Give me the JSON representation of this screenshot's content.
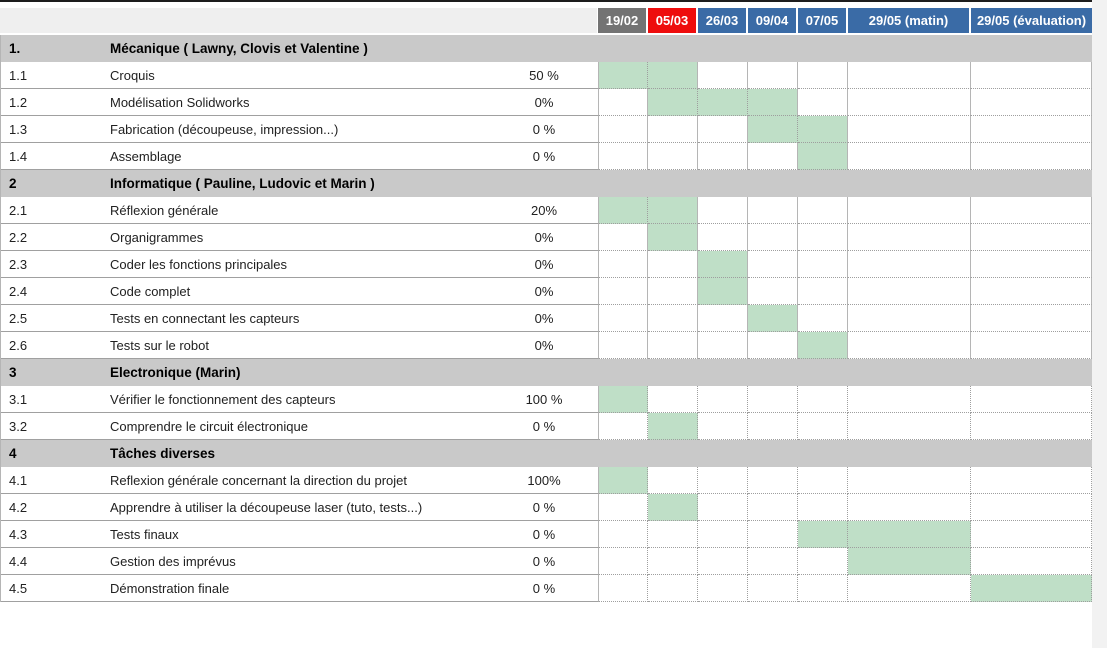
{
  "colors": {
    "bar_green": "#bfdfc7",
    "section_gray": "#c9c9c9",
    "header_blue": "#3a6ba6",
    "header_red": "#ee0d0d",
    "header_gray": "#737373"
  },
  "header": {
    "columns": [
      {
        "label": "19/02",
        "bg": "#737373"
      },
      {
        "label": "05/03",
        "bg": "#ee0d0d"
      },
      {
        "label": "26/03",
        "bg": "#3a6ba6"
      },
      {
        "label": "09/04",
        "bg": "#3a6ba6"
      },
      {
        "label": "07/05",
        "bg": "#3a6ba6"
      },
      {
        "label": "29/05 (matin)",
        "bg": "#3a6ba6"
      },
      {
        "label": "29/05 (évaluation)",
        "bg": "#3a6ba6"
      }
    ]
  },
  "sections": [
    {
      "id": "1.",
      "title": "Mécanique ( Lawny, Clovis et Valentine )",
      "tasks": [
        {
          "id": "1.1",
          "name": "Croquis",
          "progress": "50 %",
          "cols": [
            1,
            2
          ]
        },
        {
          "id": "1.2",
          "name": "Modélisation Solidworks",
          "progress": "0%",
          "cols": [
            2,
            3,
            4
          ]
        },
        {
          "id": "1.3",
          "name": "Fabrication (découpeuse, impression...)",
          "progress": "0 %",
          "cols": [
            4,
            5
          ]
        },
        {
          "id": "1.4",
          "name": "Assemblage",
          "progress": "0 %",
          "cols": [
            5
          ]
        }
      ]
    },
    {
      "id": "2",
      "title": "Informatique ( Pauline, Ludovic et Marin )",
      "tasks": [
        {
          "id": "2.1",
          "name": "Réflexion générale",
          "progress": "20%",
          "cols": [
            1,
            2
          ]
        },
        {
          "id": "2.2",
          "name": "Organigrammes",
          "progress": "0%",
          "cols": [
            2
          ]
        },
        {
          "id": "2.3",
          "name": "Coder les fonctions principales",
          "progress": "0%",
          "cols": [
            3
          ]
        },
        {
          "id": "2.4",
          "name": "Code complet",
          "progress": "0%",
          "cols": [
            3
          ]
        },
        {
          "id": "2.5",
          "name": "Tests en connectant les capteurs",
          "progress": "0%",
          "cols": [
            4
          ]
        },
        {
          "id": "2.6",
          "name": "Tests sur le robot",
          "progress": "0%",
          "cols": [
            5
          ]
        }
      ]
    },
    {
      "id": "3",
      "title": "Electronique (Marin)",
      "tasks": [
        {
          "id": "3.1",
          "name": "Vérifier le fonctionnement des capteurs",
          "progress": "100 %",
          "cols": [
            1
          ]
        },
        {
          "id": "3.2",
          "name": "Comprendre le circuit électronique",
          "progress": "0 %",
          "cols": [
            2
          ]
        }
      ]
    },
    {
      "id": "4",
      "title": "Tâches diverses",
      "tasks": [
        {
          "id": "4.1",
          "name": "Reflexion générale concernant la direction du projet",
          "progress": "100%",
          "cols": [
            1
          ]
        },
        {
          "id": "4.2",
          "name": "Apprendre à utiliser la découpeuse laser (tuto, tests...)",
          "progress": "0 %",
          "cols": [
            2
          ]
        },
        {
          "id": "4.3",
          "name": "Tests finaux",
          "progress": "0 %",
          "cols": [
            5,
            6
          ]
        },
        {
          "id": "4.4",
          "name": "Gestion des imprévus",
          "progress": "0 %",
          "cols": [
            6
          ]
        },
        {
          "id": "4.5",
          "name": "Démonstration finale",
          "progress": "0 %",
          "cols": [
            7
          ]
        }
      ]
    }
  ],
  "chart_data": {
    "type": "table",
    "subtype": "gantt",
    "title": "",
    "columns": [
      "19/02",
      "05/03",
      "26/03",
      "09/04",
      "07/05",
      "29/05 (matin)",
      "29/05 (évaluation)"
    ],
    "rows": [
      {
        "id": "1.",
        "task": "Mécanique ( Lawny, Clovis et Valentine )",
        "section": true
      },
      {
        "id": "1.1",
        "task": "Croquis",
        "progress": "50 %",
        "scheduled": [
          "19/02",
          "05/03"
        ]
      },
      {
        "id": "1.2",
        "task": "Modélisation Solidworks",
        "progress": "0%",
        "scheduled": [
          "05/03",
          "26/03",
          "09/04"
        ]
      },
      {
        "id": "1.3",
        "task": "Fabrication (découpeuse, impression...)",
        "progress": "0 %",
        "scheduled": [
          "09/04",
          "07/05"
        ]
      },
      {
        "id": "1.4",
        "task": "Assemblage",
        "progress": "0 %",
        "scheduled": [
          "07/05"
        ]
      },
      {
        "id": "2",
        "task": "Informatique ( Pauline, Ludovic et Marin )",
        "section": true
      },
      {
        "id": "2.1",
        "task": "Réflexion générale",
        "progress": "20%",
        "scheduled": [
          "19/02",
          "05/03"
        ]
      },
      {
        "id": "2.2",
        "task": "Organigrammes",
        "progress": "0%",
        "scheduled": [
          "05/03"
        ]
      },
      {
        "id": "2.3",
        "task": "Coder les fonctions principales",
        "progress": "0%",
        "scheduled": [
          "26/03"
        ]
      },
      {
        "id": "2.4",
        "task": "Code complet",
        "progress": "0%",
        "scheduled": [
          "26/03"
        ]
      },
      {
        "id": "2.5",
        "task": "Tests en connectant les capteurs",
        "progress": "0%",
        "scheduled": [
          "09/04"
        ]
      },
      {
        "id": "2.6",
        "task": "Tests sur le robot",
        "progress": "0%",
        "scheduled": [
          "07/05"
        ]
      },
      {
        "id": "3",
        "task": "Electronique (Marin)",
        "section": true
      },
      {
        "id": "3.1",
        "task": "Vérifier le fonctionnement des capteurs",
        "progress": "100 %",
        "scheduled": [
          "19/02"
        ]
      },
      {
        "id": "3.2",
        "task": "Comprendre le circuit électronique",
        "progress": "0 %",
        "scheduled": [
          "05/03"
        ]
      },
      {
        "id": "4",
        "task": "Tâches diverses",
        "section": true
      },
      {
        "id": "4.1",
        "task": "Reflexion générale concernant la direction du projet",
        "progress": "100%",
        "scheduled": [
          "19/02"
        ]
      },
      {
        "id": "4.2",
        "task": "Apprendre à utiliser la découpeuse laser (tuto, tests...)",
        "progress": "0 %",
        "scheduled": [
          "05/03"
        ]
      },
      {
        "id": "4.3",
        "task": "Tests finaux",
        "progress": "0 %",
        "scheduled": [
          "07/05",
          "29/05 (matin)"
        ]
      },
      {
        "id": "4.4",
        "task": "Gestion des imprévus",
        "progress": "0 %",
        "scheduled": [
          "29/05 (matin)"
        ]
      },
      {
        "id": "4.5",
        "task": "Démonstration finale",
        "progress": "0 %",
        "scheduled": [
          "29/05 (évaluation)"
        ]
      }
    ]
  }
}
